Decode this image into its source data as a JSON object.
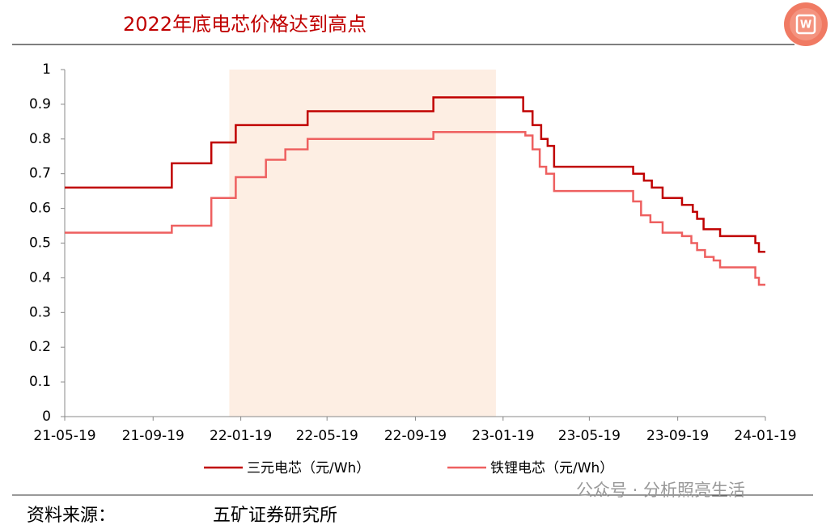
{
  "chart_data": {
    "type": "step-line",
    "title": "2022年底电芯价格达到高点",
    "xlim": [
      "21-05-19",
      "24-01-19"
    ],
    "xticks": [
      "21-05-19",
      "21-09-19",
      "22-01-19",
      "22-05-19",
      "22-09-19",
      "23-01-19",
      "23-05-19",
      "23-09-19",
      "24-01-19"
    ],
    "ylim": [
      0,
      1
    ],
    "yticks": [
      0,
      0.1,
      0.2,
      0.3,
      0.4,
      0.5,
      0.6,
      0.7,
      0.8,
      0.9,
      1
    ],
    "highlight_range": [
      "22-01-03",
      "23-01-09"
    ],
    "highlight_color": "#fdeee3",
    "series": [
      {
        "name": "三元电芯（元/Wh）",
        "color": "#c00000",
        "x": [
          "21-05-19",
          "21-10-15",
          "21-12-09",
          "22-01-12",
          "22-04-22",
          "22-10-14",
          "23-02-16",
          "23-03-01",
          "23-03-13",
          "23-03-22",
          "23-03-31",
          "23-07-19",
          "23-08-03",
          "23-08-14",
          "23-08-29",
          "23-09-25",
          "23-10-10",
          "23-10-16",
          "23-10-25",
          "23-11-17",
          "24-01-05",
          "24-01-10",
          "24-01-19"
        ],
        "values": [
          0.66,
          0.73,
          0.79,
          0.84,
          0.88,
          0.92,
          0.88,
          0.84,
          0.8,
          0.78,
          0.72,
          0.7,
          0.68,
          0.66,
          0.63,
          0.61,
          0.59,
          0.57,
          0.54,
          0.52,
          0.5,
          0.475,
          0.475
        ]
      },
      {
        "name": "铁锂电芯（元/Wh）",
        "color": "#ee6060",
        "x": [
          "21-05-19",
          "21-10-15",
          "21-12-09",
          "22-01-12",
          "22-02-23",
          "22-03-22",
          "22-04-22",
          "22-10-14",
          "23-02-19",
          "23-03-01",
          "23-03-11",
          "23-03-20",
          "23-03-31",
          "23-07-19",
          "23-07-30",
          "23-08-12",
          "23-08-29",
          "23-09-25",
          "23-10-08",
          "23-10-16",
          "23-10-27",
          "23-11-08",
          "23-11-17",
          "24-01-05",
          "24-01-10",
          "24-01-19"
        ],
        "values": [
          0.53,
          0.55,
          0.63,
          0.69,
          0.74,
          0.77,
          0.8,
          0.82,
          0.81,
          0.77,
          0.72,
          0.7,
          0.65,
          0.62,
          0.58,
          0.56,
          0.53,
          0.52,
          0.5,
          0.48,
          0.46,
          0.45,
          0.43,
          0.4,
          0.38,
          0.38
        ]
      }
    ]
  },
  "footer": {
    "source_label": "资料来源：",
    "source": "五矿证券研究所",
    "watermark": "公众号 · 分析照亮生活"
  }
}
